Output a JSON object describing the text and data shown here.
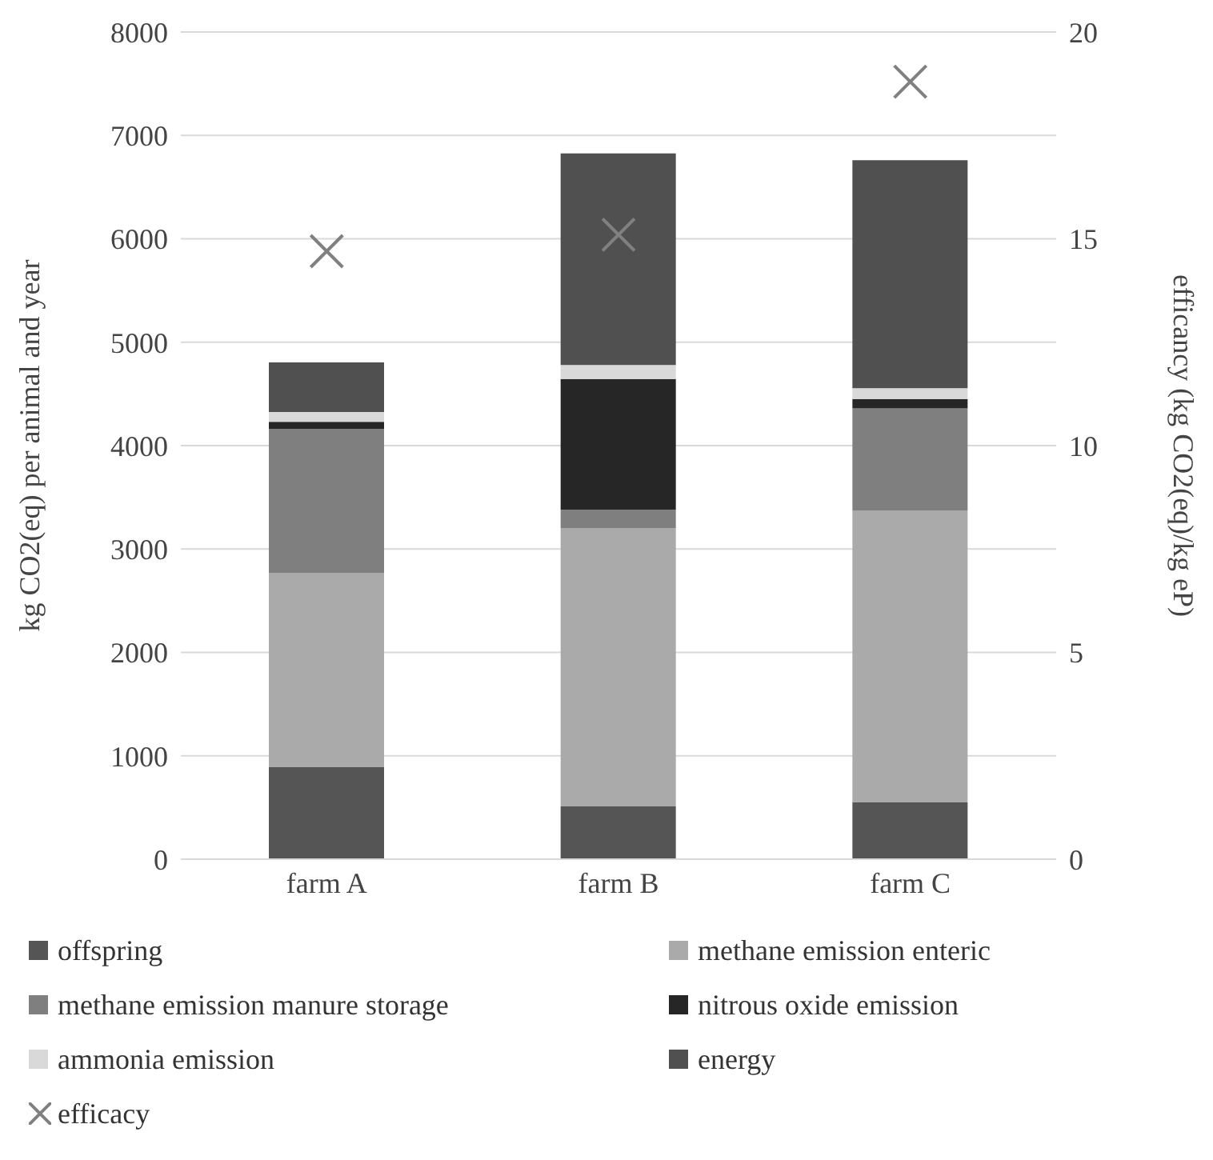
{
  "chart_data": {
    "type": "bar",
    "stacked": true,
    "categories": [
      "farm A",
      "farm B",
      "farm C"
    ],
    "ylabel": "kg CO2(eq) per animal and year",
    "y2label": "efficancy  (kg CO2(eq)/kg eP)",
    "ylim": [
      0,
      8000
    ],
    "yticks": [
      0,
      1000,
      2000,
      3000,
      4000,
      5000,
      6000,
      7000,
      8000
    ],
    "y2lim": [
      0,
      20
    ],
    "y2ticks": [
      0,
      5,
      10,
      15,
      20
    ],
    "grid": "y",
    "legend": "bottom",
    "series": [
      {
        "name": "offspring",
        "color": "#555555",
        "values": [
          890,
          510,
          550
        ]
      },
      {
        "name": "methane emission enteric",
        "color": "#aaaaaa",
        "values": [
          1880,
          2690,
          2820
        ]
      },
      {
        "name": "methane emission manure storage",
        "color": "#7f7f7f",
        "values": [
          1390,
          180,
          990
        ]
      },
      {
        "name": "nitrous oxide emission",
        "color": "#262626",
        "values": [
          70,
          1265,
          90
        ]
      },
      {
        "name": "ammonia emission",
        "color": "#d9d9d9",
        "values": [
          95,
          135,
          105
        ]
      },
      {
        "name": "energy",
        "color": "#505050",
        "values": [
          480,
          2045,
          2205
        ]
      },
      {
        "name": "efficacy",
        "type": "scatter",
        "axis": "y2",
        "marker": "cross",
        "color": "#808080",
        "values": [
          14.7,
          15.1,
          18.8
        ]
      }
    ]
  }
}
